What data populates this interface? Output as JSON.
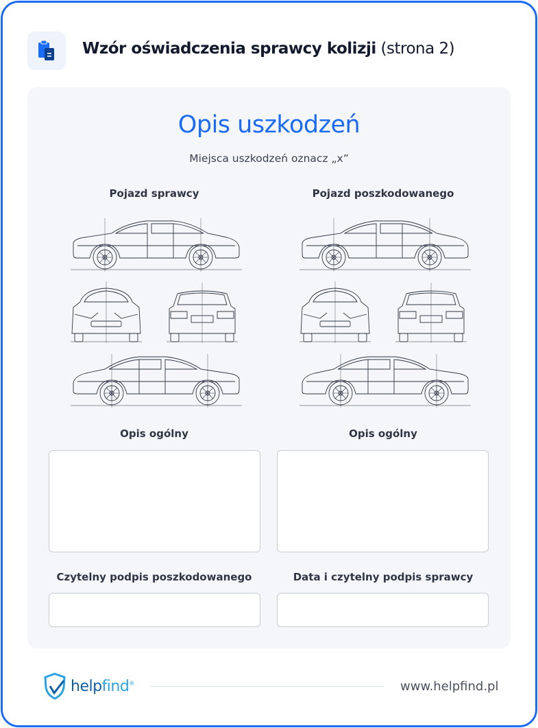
{
  "header": {
    "icon": "clipboard-document-icon",
    "title_bold": "Wzór oświadczenia sprawcy kolizji",
    "title_light": "(strona 2)"
  },
  "main": {
    "title": "Opis uszkodzeń",
    "subtitle": "Miejsca uszkodzeń oznacz „x”",
    "left": {
      "heading": "Pojazd sprawcy",
      "desc_label": "Opis ogólny",
      "sign_label": "Czytelny podpis poszkodowanego"
    },
    "right": {
      "heading": "Pojazd poszkodowanego",
      "desc_label": "Opis ogólny",
      "sign_label": "Data i czytelny podpis sprawcy"
    }
  },
  "footer": {
    "brand_a": "help",
    "brand_b": "find",
    "registered": "®",
    "url": "www.helpfind.pl"
  },
  "colors": {
    "accent": "#1a6cf5",
    "frame": "#1a6cf5",
    "panel": "#f4f6f9"
  }
}
